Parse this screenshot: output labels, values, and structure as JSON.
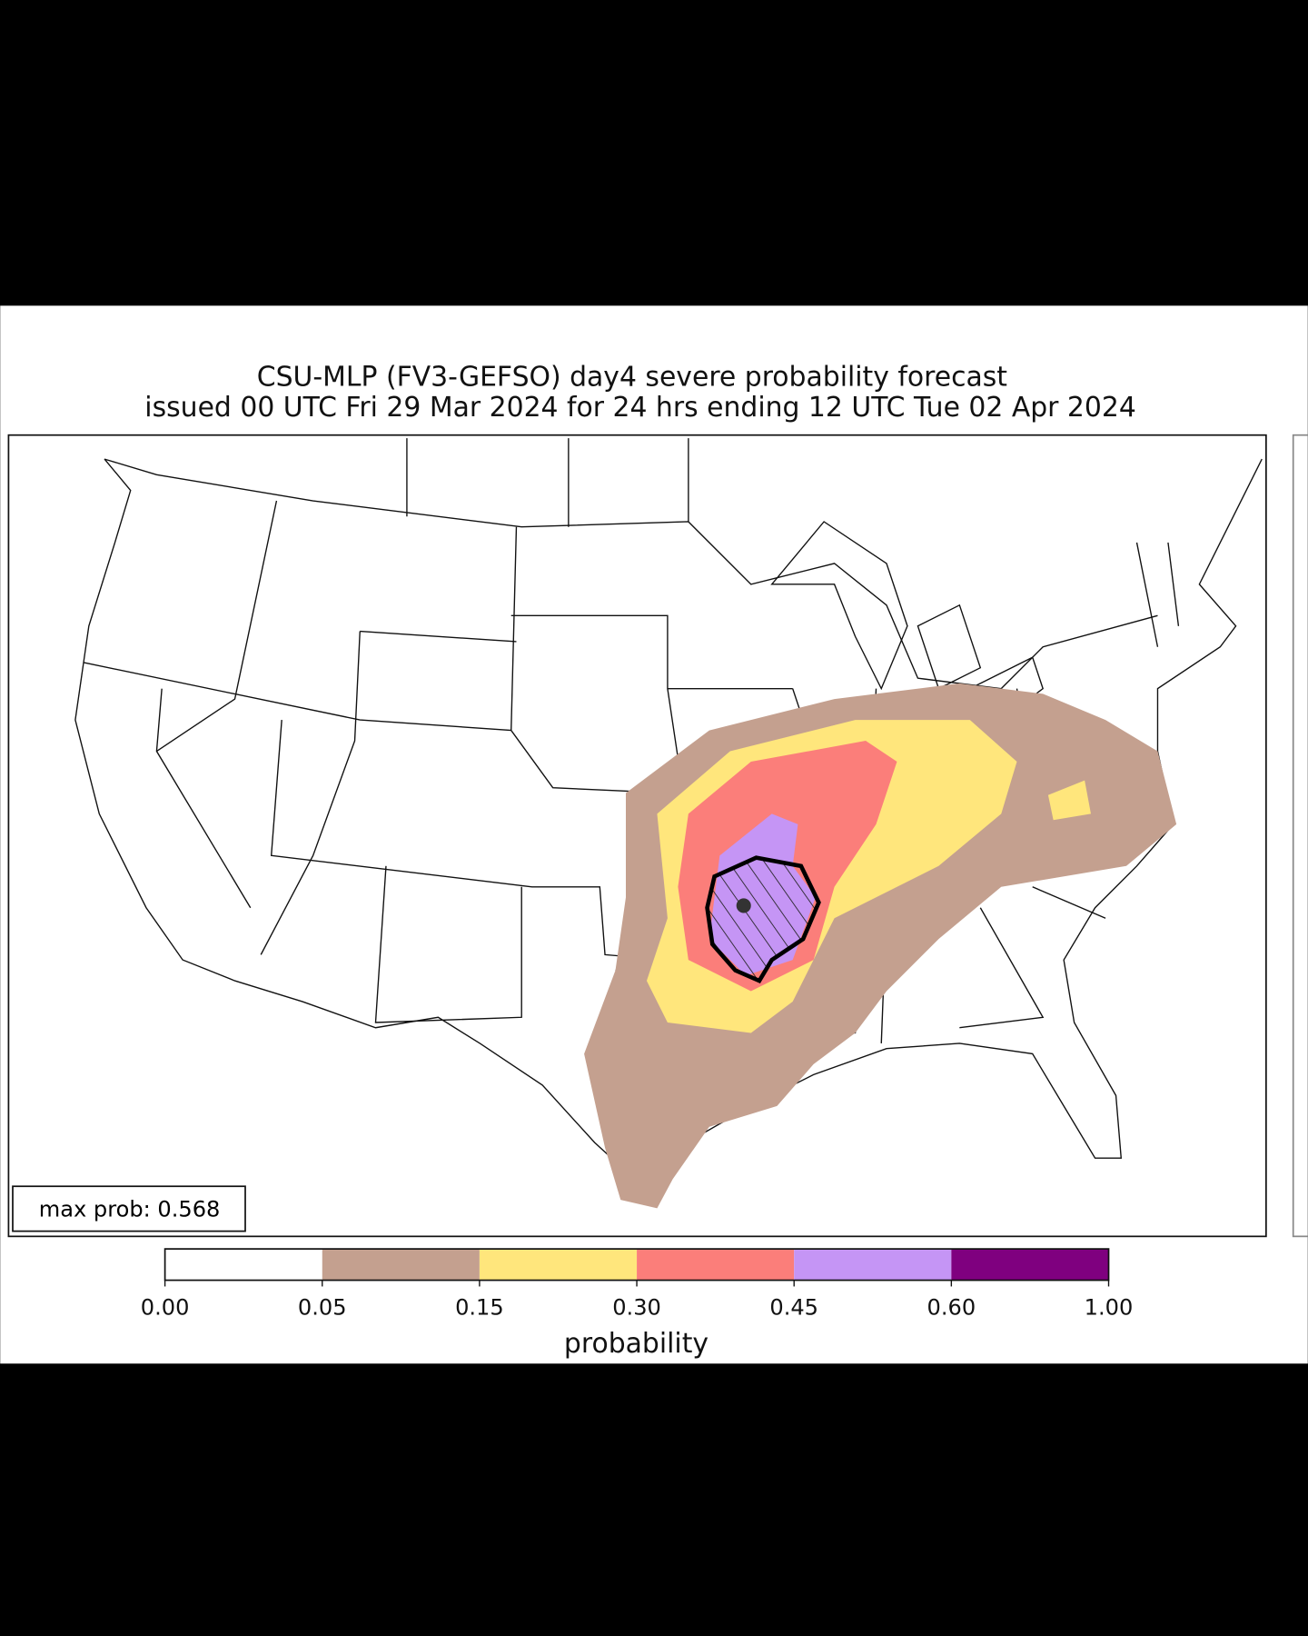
{
  "title_lines": [
    "CSU-MLP (FV3-GEFSO) day4 severe probability forecast",
    "issued 00 UTC Fri 29 Mar 2024 for 24 hrs ending 12 UTC Tue 02 Apr 2024"
  ],
  "annotation": "max prob: 0.568",
  "colorbar": {
    "label": "probability",
    "ticks": [
      {
        "value": 0,
        "label": "0.00"
      },
      {
        "value": 0.05,
        "label": "0.05"
      },
      {
        "value": 0.15,
        "label": "0.15"
      },
      {
        "value": 0.3,
        "label": "0.30"
      },
      {
        "value": 0.45,
        "label": "0.45"
      },
      {
        "value": 0.6,
        "label": "0.60"
      },
      {
        "value": 1,
        "label": "1.00"
      }
    ],
    "colors": [
      "#ffffff",
      "#c4a08f",
      "#ffe67c",
      "#fb7e7a",
      "#c595f5",
      "#7f007f"
    ]
  }
}
